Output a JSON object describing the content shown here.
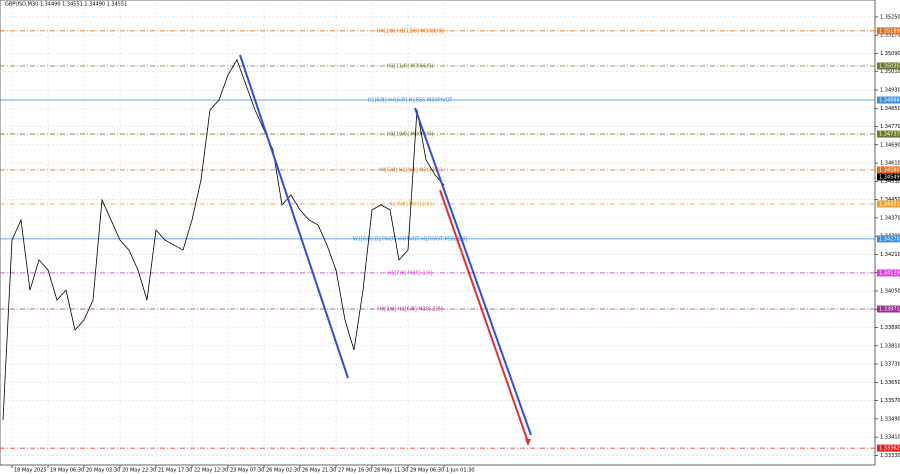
{
  "chart_data": {
    "type": "line",
    "title": "GBPUSD,M30  1.34490 1.34551 1.34490 1.34551",
    "categories": [
      null,
      "18 May 2025",
      null,
      null,
      null,
      "19 May 06:30",
      null,
      null,
      null,
      "20 May 03:30",
      null,
      null,
      null,
      "20 May 22:30",
      null,
      null,
      null,
      "21 May 17:30",
      null,
      null,
      null,
      "22 May 12:30",
      null,
      null,
      null,
      "23 May 07:30",
      null,
      null,
      null,
      "26 May 02:30",
      null,
      null,
      null,
      "26 May 21:30",
      null,
      null,
      null,
      "27 May 16:30",
      null,
      null,
      null,
      "28 May 11:30",
      null,
      null,
      null,
      "29 May 06:30",
      null,
      null,
      null,
      "1 Jun 01:30"
    ],
    "values": [
      1.33485,
      1.34273,
      1.34361,
      1.34054,
      1.34186,
      1.34142,
      1.3401,
      1.34054,
      1.33879,
      1.33923,
      1.3401,
      1.34448,
      1.34361,
      1.34273,
      1.34229,
      1.34142,
      1.3401,
      1.34317,
      1.34273,
      1.34251,
      1.34229,
      1.34361,
      1.34536,
      1.34843,
      1.34886,
      1.34996,
      1.35062,
      1.34952,
      1.34843,
      1.34755,
      1.34667,
      1.34427,
      1.3447,
      1.34405,
      1.34361,
      1.34339,
      1.34251,
      1.34142,
      1.33923,
      1.33791,
      1.34054,
      1.34405,
      1.34427,
      1.34405,
      1.34186,
      1.34229,
      1.34843,
      1.34624,
      1.34558,
      1.34514
    ],
    "color": "#000000",
    "ylim": [
      1.33288,
      1.35324
    ],
    "yticks": [
      {
        "value": 1.3525,
        "label": "1.35250"
      },
      {
        "value": 1.3517,
        "label": "1.35170"
      },
      {
        "value": 1.3509,
        "label": "1.35090"
      },
      {
        "value": 1.3501,
        "label": "1.35010"
      },
      {
        "value": 1.3493,
        "label": "1.34930"
      },
      {
        "value": 1.3485,
        "label": "1.34850"
      },
      {
        "value": 1.3477,
        "label": "1.34770"
      },
      {
        "value": 1.3469,
        "label": "1.34690"
      },
      {
        "value": 1.3461,
        "label": "1.34610"
      },
      {
        "value": 1.3453,
        "label": "1.34530"
      },
      {
        "value": 1.3445,
        "label": "1.34450"
      },
      {
        "value": 1.3437,
        "label": "1.34370"
      },
      {
        "value": 1.3429,
        "label": "1.34290"
      },
      {
        "value": 1.3421,
        "label": "1.34210"
      },
      {
        "value": 1.3413,
        "label": "1.34130"
      },
      {
        "value": 1.3405,
        "label": "1.34050"
      },
      {
        "value": 1.3397,
        "label": "1.33970"
      },
      {
        "value": 1.3389,
        "label": "1.33890"
      },
      {
        "value": 1.3381,
        "label": "1.33810"
      },
      {
        "value": 1.3373,
        "label": "1.33730"
      },
      {
        "value": 1.3365,
        "label": "1.33650"
      },
      {
        "value": 1.3357,
        "label": "1.33570"
      },
      {
        "value": 1.3349,
        "label": "1.33490"
      },
      {
        "value": 1.3341,
        "label": "1.33410"
      },
      {
        "value": 1.3333,
        "label": "1.33330"
      }
    ],
    "grid": true,
    "levels": [
      {
        "name": "H4[1/8] H1[12/8] M30[8/8]",
        "value": 1.35189,
        "value_label": "1.35189",
        "color": "#e07020"
      },
      {
        "name": "H1[11/8] M30[6/8]",
        "value": 1.35035,
        "value_label": "1.35035",
        "color": "#6b7a2a"
      },
      {
        "name": "D1[6/8] H4[6/8] H1RES M30PIVOT",
        "value": 1.34886,
        "value_label": "1.34886",
        "color": "#3a8ee0"
      },
      {
        "name": "H1[10/8] M30[4/8]",
        "value": 1.34737,
        "value_label": "1.34737",
        "color": "#6b7a2a"
      },
      {
        "name": "H4[5/8] H1[9/8] M30[3/8]",
        "value": 1.3458,
        "value_label": "1.34580",
        "color": "#e07020"
      },
      {
        "name": "H1[8/8] M30[2/8]",
        "value": 1.34431,
        "value_label": "1.34431",
        "color": "#f0a030"
      },
      {
        "name": "W1[6/8] D1PIVOT H4PIVOT H1PIVOT M30[1/8]",
        "value": 1.34278,
        "value_label": "1.34278",
        "color": "#3a8ee0"
      },
      {
        "name": "H1[7/8] M30[-1/8]",
        "value": 1.34129,
        "value_label": "1.34129",
        "color": "#e040e0"
      },
      {
        "name": "H4[3/8] H1[6/8] M30[-2/8]",
        "value": 1.33971,
        "value_label": "1.33971",
        "color": "#a03090"
      },
      {
        "name": null,
        "value": 1.33362,
        "value_label": "1.33362",
        "color": "#e02020"
      }
    ],
    "last_price": 1.34549
  }
}
